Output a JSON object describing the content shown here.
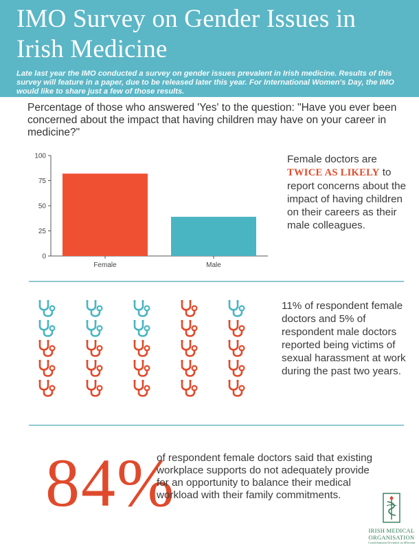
{
  "header": {
    "title": "IMO Survey on Gender Issues in Irish Medicine",
    "intro": "Late last year the IMO conducted a survey on gender issues prevalent in Irish medicine. Results of this survey will feature in a paper, due to be released later this year. For International Women's Day, the IMO would like to share just a few of those results."
  },
  "question": "Percentage of those who answered 'Yes' to the question: \"Have you ever been concerned about the impact that having children may have on your career in medicine?\"",
  "chart_data": {
    "type": "bar",
    "categories": [
      "Female",
      "Male"
    ],
    "values": [
      82,
      39
    ],
    "ylim": [
      0,
      100
    ],
    "yticks": [
      0,
      25,
      50,
      75,
      100
    ],
    "colors": [
      "#f05032",
      "#4ab5c2"
    ],
    "grid": false,
    "title": "",
    "xlabel": "",
    "ylabel": ""
  },
  "note1": {
    "pre": "Female doctors are ",
    "emphasis": "TWICE AS LIKELY",
    "post": " to report concerns about the impact of having children on their careers as their male colleagues."
  },
  "harassment": {
    "icon": "stethoscope-icon",
    "columns": 5,
    "rows": 5,
    "teal_per_column": [
      2,
      2,
      2,
      0,
      1
    ],
    "teal_color": "#4ab5c2",
    "red_color": "#e04a2c",
    "text": "11% of respondent female doctors and 5% of respondent male doctors reported being victims of sexual harassment at work during the past two years."
  },
  "workplace": {
    "percent": "84%",
    "text": "of respondent female doctors said that existing workplace supports do not adequately provide for an opportunity to balance their medical workload with their family commitments."
  },
  "logo": {
    "line1": "IRISH MEDICAL",
    "line2": "ORGANISATION",
    "line3": "Ceardchumann Dochtúirí na hÉireann"
  }
}
